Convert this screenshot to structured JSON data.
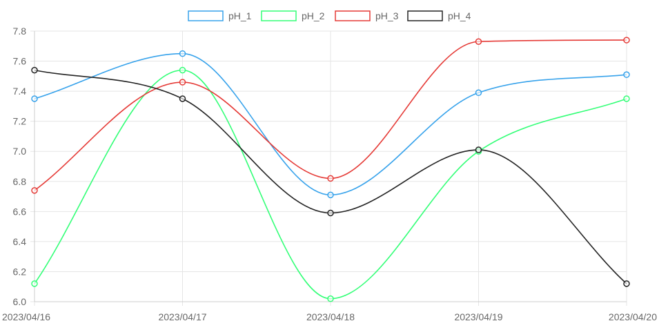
{
  "chart_data": {
    "type": "line",
    "categories": [
      "2023/04/16",
      "2023/04/17",
      "2023/04/18",
      "2023/04/19",
      "2023/04/20"
    ],
    "series": [
      {
        "name": "pH_1",
        "color": "#36a2eb",
        "values": [
          7.35,
          7.65,
          6.71,
          7.39,
          7.51
        ]
      },
      {
        "name": "pH_2",
        "color": "#33ff77",
        "values": [
          6.12,
          7.54,
          6.02,
          7.0,
          7.35
        ]
      },
      {
        "name": "pH_3",
        "color": "#e53935",
        "values": [
          6.74,
          7.46,
          6.82,
          7.73,
          7.74
        ]
      },
      {
        "name": "pH_4",
        "color": "#222222",
        "values": [
          7.54,
          7.35,
          6.59,
          7.01,
          6.12
        ]
      }
    ],
    "ylim": [
      6.0,
      7.8
    ],
    "yticks": [
      "6.0",
      "6.2",
      "6.4",
      "6.6",
      "6.8",
      "7.0",
      "7.2",
      "7.4",
      "7.6",
      "7.8"
    ],
    "grid": true,
    "legend_position": "top-center",
    "interpolation": "smooth"
  }
}
